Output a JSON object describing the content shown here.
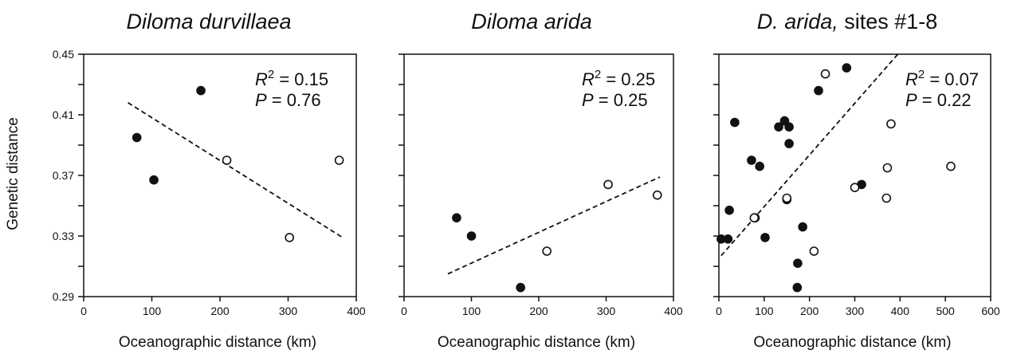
{
  "figure": {
    "ylabel": "Genetic distance",
    "colors": {
      "ink": "#111111",
      "background": "#ffffff"
    }
  },
  "chart_data": [
    {
      "type": "scatter",
      "title": "Diloma durvillaea",
      "title_parts": [
        {
          "text": "Diloma durvillaea",
          "italic": true
        }
      ],
      "xlabel": "Oceanographic distance (km)",
      "ylabel": "Genetic distance",
      "xlim": [
        0,
        400
      ],
      "ylim": [
        0.29,
        0.45
      ],
      "xticks": [
        0,
        100,
        200,
        300,
        400
      ],
      "yticks": [
        0.29,
        0.33,
        0.37,
        0.41,
        0.45
      ],
      "show_y_tick_labels": true,
      "stats": {
        "r2": "0.15",
        "p": "0.76",
        "r2_prefix": "R",
        "p_prefix": "P"
      },
      "trendline": {
        "x": [
          65,
          380
        ],
        "y": [
          0.418,
          0.329
        ]
      },
      "series": [
        {
          "marker": "filled",
          "points": [
            [
              78,
              0.395
            ],
            [
              103,
              0.367
            ],
            [
              172,
              0.426
            ]
          ]
        },
        {
          "marker": "open",
          "points": [
            [
              210,
              0.38
            ],
            [
              302,
              0.329
            ],
            [
              375,
              0.38
            ]
          ]
        }
      ]
    },
    {
      "type": "scatter",
      "title": "Diloma arida",
      "title_parts": [
        {
          "text": "Diloma arida",
          "italic": true
        }
      ],
      "xlabel": "Oceanographic distance (km)",
      "xlim": [
        0,
        400
      ],
      "ylim": [
        0.29,
        0.45
      ],
      "xticks": [
        0,
        100,
        200,
        300,
        400
      ],
      "yticks": [
        0.29,
        0.31,
        0.33,
        0.35,
        0.37,
        0.39,
        0.41,
        0.43,
        0.45
      ],
      "show_y_tick_labels": false,
      "stats": {
        "r2": "0.25",
        "p": "0.25",
        "r2_prefix": "R",
        "p_prefix": "P"
      },
      "trendline": {
        "x": [
          65,
          380
        ],
        "y": [
          0.305,
          0.369
        ]
      },
      "series": [
        {
          "marker": "filled",
          "points": [
            [
              78,
              0.342
            ],
            [
              100,
              0.33
            ],
            [
              173,
              0.296
            ]
          ]
        },
        {
          "marker": "open",
          "points": [
            [
              212,
              0.32
            ],
            [
              303,
              0.364
            ],
            [
              376,
              0.357
            ]
          ]
        }
      ]
    },
    {
      "type": "scatter",
      "title": "D. arida, sites #1-8",
      "title_parts": [
        {
          "text": "D. arida,",
          "italic": true
        },
        {
          "text": " sites #1-8",
          "italic": false
        }
      ],
      "xlabel": "Oceanographic distance (km)",
      "xlim": [
        0,
        600
      ],
      "ylim": [
        0.29,
        0.45
      ],
      "xticks": [
        0,
        100,
        200,
        300,
        400,
        500,
        600
      ],
      "yticks": [
        0.29,
        0.31,
        0.33,
        0.35,
        0.37,
        0.39,
        0.41,
        0.43,
        0.45
      ],
      "show_y_tick_labels": false,
      "stats": {
        "r2": "0.07",
        "p": "0.22",
        "r2_prefix": "R",
        "p_prefix": "P"
      },
      "trendline": {
        "x": [
          5,
          395
        ],
        "y": [
          0.317,
          0.45
        ]
      },
      "series": [
        {
          "marker": "filled",
          "points": [
            [
              5,
              0.328
            ],
            [
              20,
              0.328
            ],
            [
              23,
              0.347
            ],
            [
              35,
              0.405
            ],
            [
              72,
              0.38
            ],
            [
              80,
              0.342
            ],
            [
              90,
              0.376
            ],
            [
              102,
              0.329
            ],
            [
              132,
              0.402
            ],
            [
              145,
              0.406
            ],
            [
              150,
              0.354
            ],
            [
              155,
              0.391
            ],
            [
              155,
              0.402
            ],
            [
              173,
              0.296
            ],
            [
              174,
              0.312
            ],
            [
              185,
              0.336
            ],
            [
              220,
              0.426
            ],
            [
              282,
              0.441
            ],
            [
              315,
              0.364
            ]
          ]
        },
        {
          "marker": "open",
          "points": [
            [
              78,
              0.342
            ],
            [
              150,
              0.355
            ],
            [
              210,
              0.32
            ],
            [
              235,
              0.437
            ],
            [
              300,
              0.362
            ],
            [
              370,
              0.355
            ],
            [
              372,
              0.375
            ],
            [
              380,
              0.404
            ],
            [
              512,
              0.376
            ]
          ]
        }
      ]
    }
  ]
}
